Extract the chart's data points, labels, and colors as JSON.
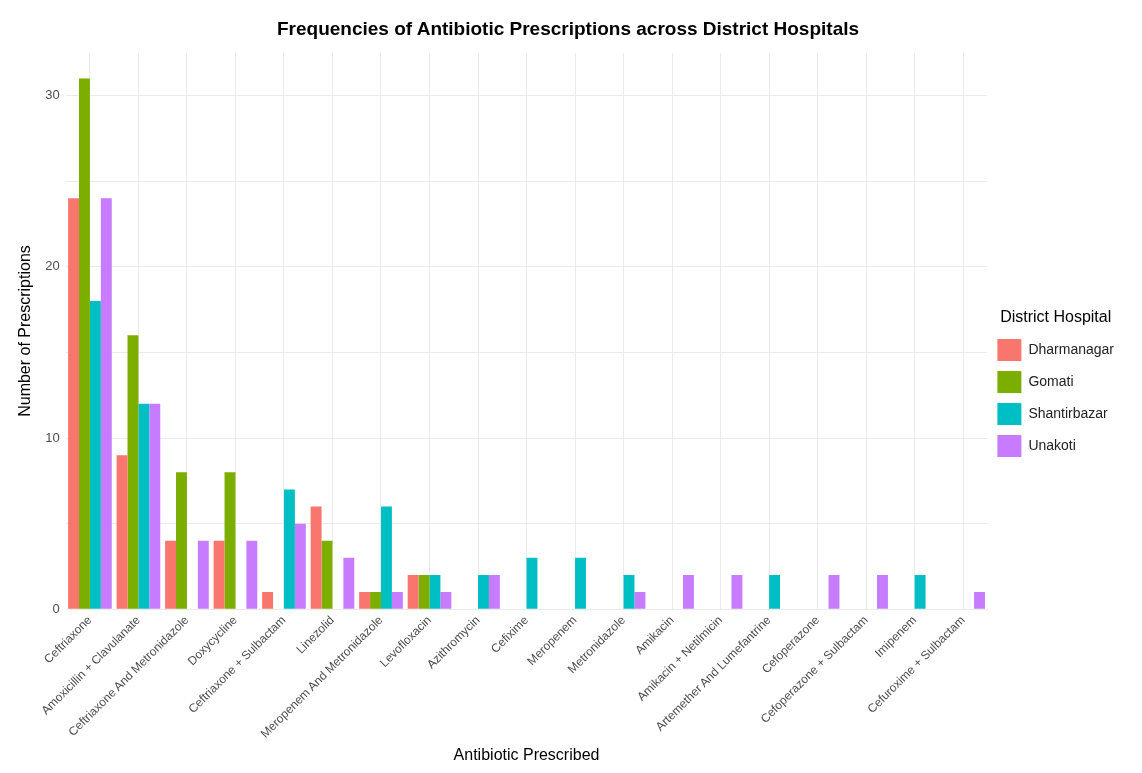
{
  "chart_data": {
    "type": "bar",
    "title": "Frequencies of Antibiotic Prescriptions across District Hospitals",
    "xlabel": "Antibiotic Prescribed",
    "ylabel": "Number of Prescriptions",
    "legend_title": "District Hospital",
    "categories": [
      "Ceftriaxone",
      "Amoxicillin + Clavulanate",
      "Ceftriaxone And Metronidazole",
      "Doxycycline",
      "Ceftriaxone + Sulbactam",
      "Linezolid",
      "Meropenem And Metronidazole",
      "Levofloxacin",
      "Azithromycin",
      "Cefixime",
      "Meropenem",
      "Metronidazole",
      "Amikacin",
      "Amikacin + Netilmicin",
      "Artemether And Lumefantrine",
      "Cefoperazone",
      "Cefoperazone + Sulbactam",
      "Imipenem",
      "Cefuroxime + Sulbactam"
    ],
    "series": [
      {
        "name": "Dharmanagar",
        "color": "#f8766d",
        "values": [
          24,
          9,
          4,
          4,
          1,
          6,
          1,
          2,
          null,
          null,
          null,
          null,
          null,
          null,
          null,
          null,
          null,
          null,
          null
        ]
      },
      {
        "name": "Gomati",
        "color": "#7cae00",
        "values": [
          31,
          16,
          8,
          8,
          null,
          4,
          1,
          2,
          null,
          null,
          null,
          null,
          null,
          null,
          null,
          null,
          null,
          null,
          null
        ]
      },
      {
        "name": "Shantirbazar",
        "color": "#00bfc4",
        "values": [
          18,
          12,
          null,
          null,
          7,
          null,
          6,
          2,
          2,
          3,
          3,
          2,
          null,
          null,
          2,
          null,
          null,
          2,
          null
        ]
      },
      {
        "name": "Unakoti",
        "color": "#c77cff",
        "values": [
          24,
          12,
          4,
          4,
          5,
          3,
          1,
          1,
          2,
          null,
          null,
          1,
          2,
          2,
          null,
          2,
          2,
          null,
          1
        ]
      }
    ],
    "ylim": [
      0,
      32.5
    ],
    "yticks": [
      0,
      {
        "value": 5,
        "label": null
      },
      10,
      {
        "value": 15,
        "label": null
      },
      20,
      {
        "value": 25,
        "label": null
      },
      30
    ],
    "grid": true,
    "legend": "right"
  }
}
